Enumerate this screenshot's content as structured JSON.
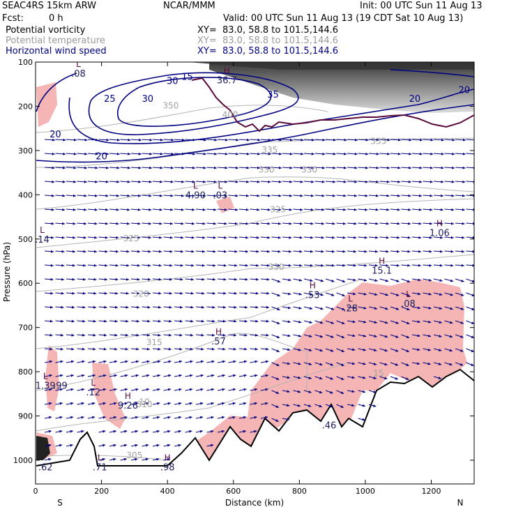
{
  "header": {
    "model": "SEAC4RS 15km ARW",
    "org": "NCAR/MMM",
    "init": "Init: 00 UTC Sun 11 Aug 13",
    "fcst_label": "Fcst:",
    "fcst_value": "0 h",
    "valid": "Valid: 00 UTC Sun 11 Aug 13 (19 CDT Sat 10 Aug 13)",
    "fields": [
      {
        "name": "Potential vorticity",
        "xy": "XY=  83.0, 58.8 to 101.5,144.6",
        "color": "#000000"
      },
      {
        "name": "Potential temperature",
        "xy": "XY=  83.0, 58.8 to 101.5,144.6",
        "color": "#b4b4b4"
      },
      {
        "name": "Horizontal wind speed",
        "xy": "XY=  83.0, 58.8 to 101.5,144.6",
        "color": "#000080"
      }
    ]
  },
  "chart_data": {
    "type": "cross-section",
    "xlabel": "Distance (km)",
    "ylabel": "Pressure (hPa)",
    "xlim": [
      0,
      1330
    ],
    "ylim": [
      1050,
      100
    ],
    "x_ticks": [
      0,
      200,
      400,
      600,
      800,
      1000,
      1200
    ],
    "y_ticks": [
      100,
      200,
      300,
      400,
      500,
      600,
      700,
      800,
      900,
      1000
    ],
    "x_end_labels": [
      "S",
      "N"
    ],
    "colors": {
      "pv_shade": "#f5b5b5",
      "wind_contour": "#000080",
      "theta_contour": "#b4b4b4",
      "terrain": "#000000",
      "vectors": "#000080"
    },
    "wind_speed_contours": [
      {
        "level": "15",
        "x": 460,
        "p": 140
      },
      {
        "level": "20",
        "x": 60,
        "p": 270
      },
      {
        "level": "20",
        "x": 200,
        "p": 320
      },
      {
        "level": "20",
        "x": 1150,
        "p": 190
      },
      {
        "level": "20",
        "x": 1300,
        "p": 170
      },
      {
        "level": "25",
        "x": 225,
        "p": 190
      },
      {
        "level": "30",
        "x": 340,
        "p": 190
      },
      {
        "level": "30",
        "x": 415,
        "p": 150
      },
      {
        "level": "35",
        "x": 720,
        "p": 180
      }
    ],
    "theta_contours": [
      {
        "level": "305",
        "x": 300,
        "p": 995
      },
      {
        "level": "310",
        "x": 330,
        "p": 880
      },
      {
        "level": "315",
        "x": 360,
        "p": 740
      },
      {
        "level": "320",
        "x": 320,
        "p": 630
      },
      {
        "level": "325",
        "x": 290,
        "p": 505
      },
      {
        "level": "325",
        "x": 735,
        "p": 440
      },
      {
        "level": "330",
        "x": 730,
        "p": 570
      },
      {
        "level": "330",
        "x": 700,
        "p": 350
      },
      {
        "level": "330",
        "x": 830,
        "p": 350
      },
      {
        "level": "335",
        "x": 710,
        "p": 305
      },
      {
        "level": "335",
        "x": 1040,
        "p": 285
      },
      {
        "level": "350",
        "x": 410,
        "p": 205
      },
      {
        "level": "400",
        "x": 590,
        "p": 225
      },
      {
        "level": "10",
        "x": 330,
        "p": 875
      },
      {
        "level": "15",
        "x": 1040,
        "p": 810
      }
    ],
    "extrema": [
      {
        "type": "L",
        "value": ".08",
        "x": 130,
        "p": 130
      },
      {
        "type": "H",
        "value": "36.7",
        "x": 580,
        "p": 145
      },
      {
        "type": "L",
        "value": "4.90",
        "x": 485,
        "p": 405
      },
      {
        "type": "L",
        "value": ".03",
        "x": 560,
        "p": 405
      },
      {
        "type": "L",
        "value": ".14",
        "x": 20,
        "p": 505
      },
      {
        "type": "H",
        "value": "1.06",
        "x": 1225,
        "p": 490
      },
      {
        "type": "H",
        "value": "15.1",
        "x": 1050,
        "p": 575
      },
      {
        "type": "H",
        "value": ".53",
        "x": 840,
        "p": 630
      },
      {
        "type": "L",
        "value": ".28",
        "x": 955,
        "p": 660
      },
      {
        "type": "L",
        "value": ".08",
        "x": 1130,
        "p": 650
      },
      {
        "type": "H",
        "value": ".57",
        "x": 555,
        "p": 735
      },
      {
        "type": "L",
        "value": "1.39",
        "x": 30,
        "p": 835
      },
      {
        "type": "",
        "value": ".99",
        "x": 75,
        "p": 835
      },
      {
        "type": "L",
        "value": ".12",
        "x": 175,
        "p": 850
      },
      {
        "type": "H",
        "value": "9.26",
        "x": 280,
        "p": 880
      },
      {
        "type": "L",
        "value": ".71",
        "x": 195,
        "p": 1020
      },
      {
        "type": "H",
        "value": ".98",
        "x": 400,
        "p": 1020
      },
      {
        "type": "",
        "value": ".62",
        "x": 30,
        "p": 1020
      },
      {
        "type": "",
        "value": ".46",
        "x": 890,
        "p": 925
      }
    ],
    "wind": "westerly (left-to-right) horizontal wind vectors throughout the troposphere; jet maximum >35 m/s near 120-200 hPa",
    "pv_shading": "pink shaded regions of elevated potential vorticity; dark shading above tropopause (100-200 hPa)"
  }
}
